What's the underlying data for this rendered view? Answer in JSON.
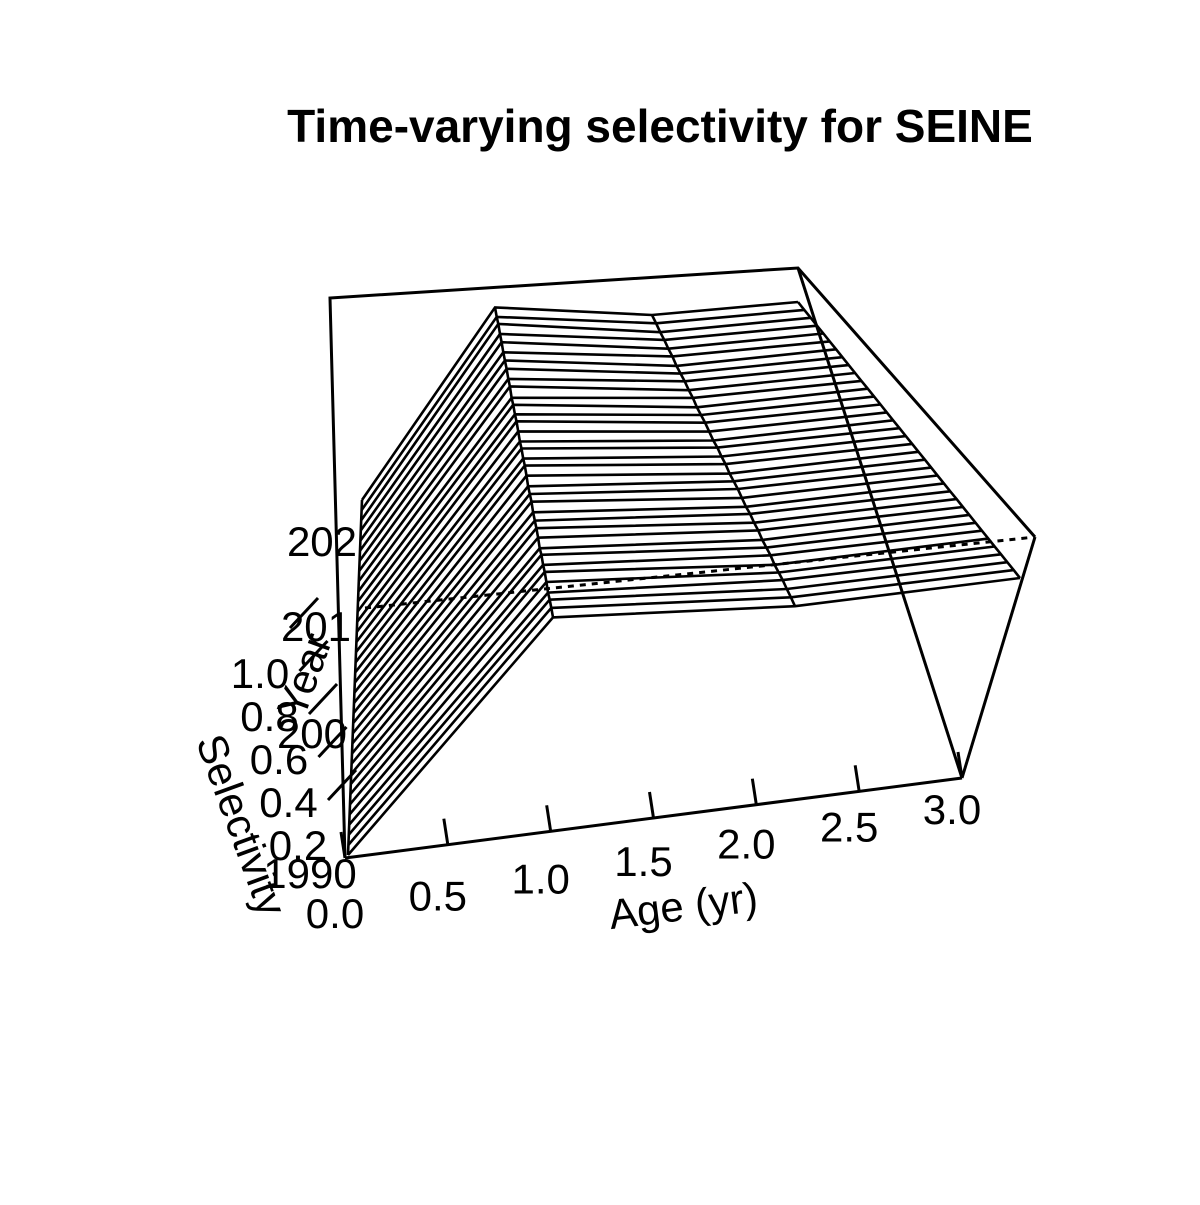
{
  "chart_data": {
    "type": "surface-3d-wireframe",
    "title": "Time-varying selectivity for SEINE",
    "xlabel": "Age (yr)",
    "ylabel": "Year",
    "zlabel": "Selectivity",
    "x_ticks": [
      "0.0",
      "0.5",
      "1.0",
      "1.5",
      "2.0",
      "2.5",
      "3.0"
    ],
    "year_ticks": [
      "1990",
      "200",
      "201",
      "202"
    ],
    "z_ticks": [
      "0.2",
      "0.4",
      "0.6",
      "0.8",
      "1.0"
    ],
    "xlim": [
      0,
      3
    ],
    "ylim": [
      1990,
      2025
    ],
    "zlim": [
      0,
      1
    ],
    "ages": [
      0,
      1,
      2,
      3
    ],
    "years": [
      1990,
      1991,
      1992,
      1993,
      1994,
      1995,
      1996,
      1997,
      1998,
      1999,
      2000,
      2001,
      2002,
      2003,
      2004,
      2005,
      2006,
      2007,
      2008,
      2009,
      2010,
      2011,
      2012,
      2013,
      2014,
      2015,
      2016,
      2017,
      2018,
      2019,
      2020,
      2021,
      2022,
      2023,
      2024,
      2025
    ],
    "selectivity_at_age_1": [
      0.96,
      0.97,
      0.96,
      0.93,
      0.96,
      0.98,
      0.95,
      0.97,
      0.93,
      0.96,
      0.97,
      0.95,
      0.94,
      0.97,
      0.95,
      0.93,
      0.96,
      0.98,
      0.95,
      0.97,
      0.94,
      0.96,
      0.98,
      0.95,
      0.96,
      0.93,
      0.97,
      0.95,
      0.97,
      0.96,
      0.95,
      0.97,
      0.96,
      0.98,
      0.95,
      0.96
    ],
    "selectivity_at_age_2": [
      0.98,
      0.99,
      0.99,
      1.0,
      0.99,
      0.98,
      1.0,
      0.99,
      0.98,
      1.0,
      0.99,
      1.0,
      0.98,
      0.99,
      1.0,
      0.99,
      0.98,
      1.0,
      0.99,
      1.0,
      0.98,
      0.99,
      1.0,
      0.99,
      0.98,
      1.0,
      0.99,
      1.0,
      0.99,
      0.98,
      1.0,
      0.99,
      1.0,
      0.99,
      1.0,
      1.0
    ],
    "selectivity_at_age_0": 0.0,
    "selectivity_at_age_3": 1.0
  }
}
